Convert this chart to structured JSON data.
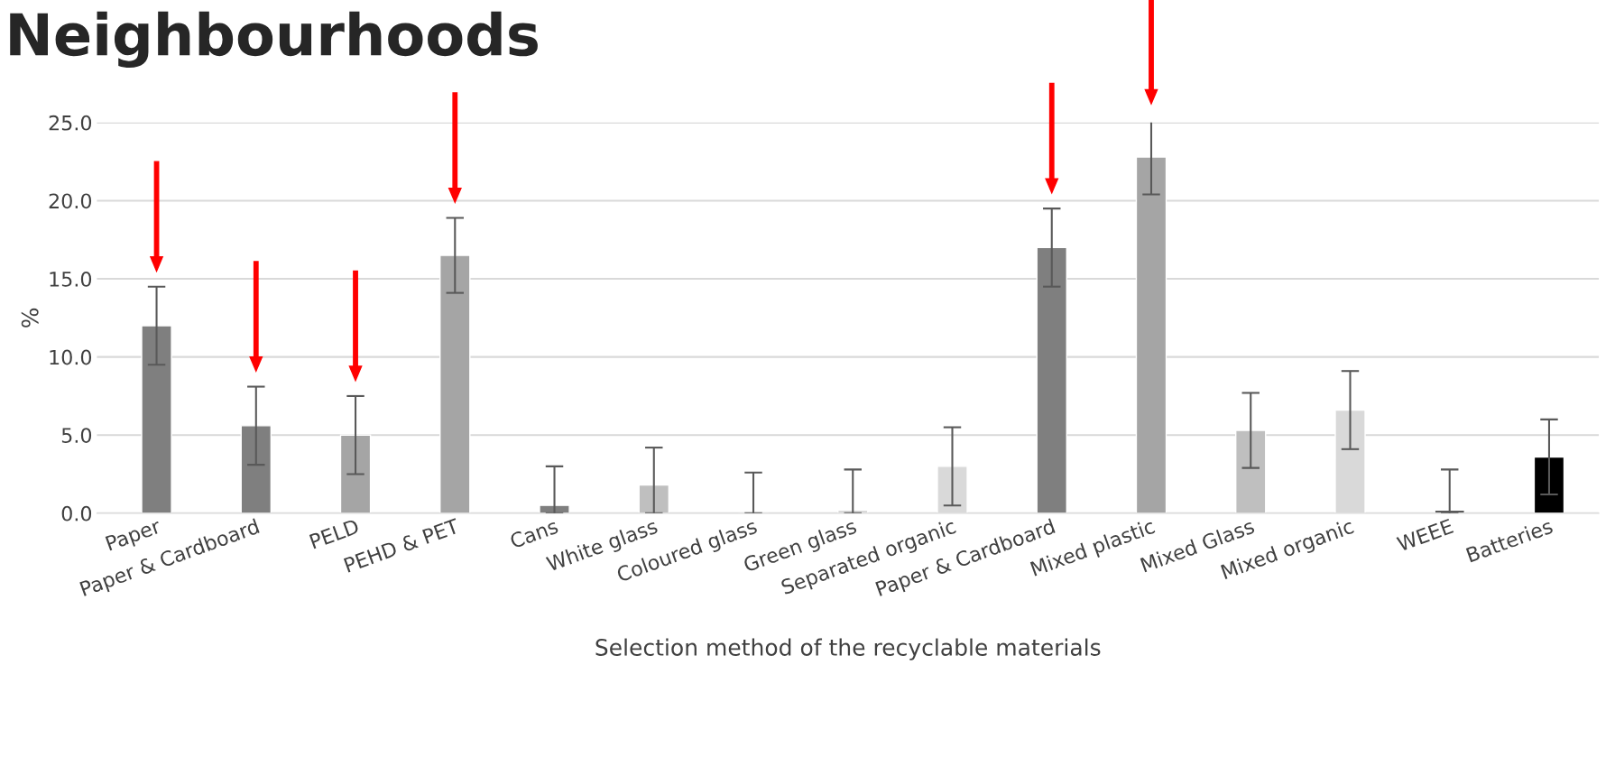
{
  "chart_data": {
    "type": "bar",
    "title": "Neighbourhoods",
    "xlabel": "Selection method of the recyclable materials",
    "ylabel": "%",
    "categories": [
      "Paper",
      "Paper & Cardboard",
      "PELD",
      "PEHD & PET",
      "Cans",
      "White glass",
      "Coloured glass",
      "Green glass",
      "Separated organic",
      "Paper & Cardboard",
      "Mixed plastic",
      "Mixed Glass",
      "Mixed organic",
      "WEEE",
      "Batteries"
    ],
    "values": [
      12.0,
      5.6,
      5.0,
      16.5,
      0.5,
      1.8,
      0.0,
      0.2,
      3.0,
      17.0,
      22.8,
      5.3,
      6.6,
      0.2,
      3.6
    ],
    "errors": [
      2.5,
      2.5,
      2.5,
      2.4,
      [
        0,
        3.0
      ],
      [
        0,
        4.2
      ],
      [
        0,
        2.6
      ],
      [
        0,
        2.8
      ],
      2.5,
      2.5,
      2.4,
      2.4,
      2.5,
      [
        0,
        2.8
      ],
      2.4
    ],
    "colors": [
      "#7f7f7f",
      "#7f7f7f",
      "#a5a5a5",
      "#a5a5a5",
      "#7f7f7f",
      "#bfbfbf",
      null,
      "#d9d9d9",
      "#d9d9d9",
      "#7f7f7f",
      "#a5a5a5",
      "#bfbfbf",
      "#d9d9d9",
      "#595959",
      "#000000"
    ],
    "ylim": [
      0,
      25
    ],
    "yticks": [
      {
        "value": 0,
        "label": "0.0"
      },
      {
        "value": 5,
        "label": "5.0"
      },
      {
        "value": 10,
        "label": "10.0"
      },
      {
        "value": 15,
        "label": "15.0"
      },
      {
        "value": 20,
        "label": "20.0"
      },
      {
        "value": 25,
        "label": "25.0"
      }
    ],
    "grid": "y"
  }
}
